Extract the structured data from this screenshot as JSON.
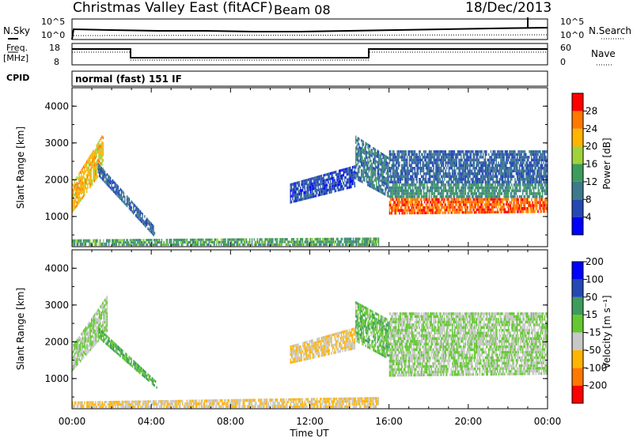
{
  "header": {
    "title": "Christmas Valley East (fitACF)",
    "beam": "Beam 08",
    "date": "18/Dec/2013"
  },
  "summary_panels": {
    "nsky_label": "N.Sky",
    "nsearch_label": "N.Search",
    "count_ticks": [
      "10^5",
      "10^0"
    ],
    "freq_label": "Freq.",
    "freq_unit": "[MHz]",
    "freq_ticks": [
      "18",
      "8"
    ],
    "nave_label": "Nave",
    "nave_ticks": [
      "60",
      "0"
    ],
    "cpid_label": "CPID",
    "cpid_text": "normal (fast) 151 IF"
  },
  "range_ticks": [
    "1000",
    "2000",
    "3000",
    "4000"
  ],
  "time_ticks": [
    "00:00",
    "04:00",
    "08:00",
    "12:00",
    "16:00",
    "20:00",
    "00:00"
  ],
  "xlabel": "Time UT",
  "colors": {
    "power": [
      "#0000ff",
      "#2448b4",
      "#3c7a8c",
      "#3c9c5c",
      "#a0d23c",
      "#ffb400",
      "#ff7800",
      "#ff0000"
    ],
    "velocity": [
      "#ff0000",
      "#ff7800",
      "#ffb400",
      "#c8c8c8",
      "#64c832",
      "#3c9c5c",
      "#2448b4",
      "#0000ff"
    ]
  },
  "chart_data": [
    {
      "type": "heatmap",
      "ylabel": "Slant Range [km]",
      "xlabel": "",
      "x_range_hours": [
        0,
        24
      ],
      "ylim": [
        180,
        4500
      ],
      "colorbar_label": "Power [dB]",
      "colorbar_ticks": [
        "4",
        "8",
        "12",
        "16",
        "20",
        "24",
        "28"
      ],
      "colorbar_range": [
        0,
        32
      ],
      "regions": [
        {
          "t": [
            0.0,
            1.6
          ],
          "r0": [
            1100,
            2300
          ],
          "r1": [
            1900,
            3300
          ],
          "value": 22
        },
        {
          "t": [
            1.3,
            4.2
          ],
          "r0": [
            2100,
            400
          ],
          "r1": [
            2450,
            700
          ],
          "value": 8
        },
        {
          "t": [
            0.0,
            15.5
          ],
          "r0": [
            200,
            200
          ],
          "r1": [
            380,
            430
          ],
          "value": 14
        },
        {
          "t": [
            11.0,
            14.3
          ],
          "r0": [
            1350,
            1800
          ],
          "r1": [
            1900,
            2400
          ],
          "value": 6
        },
        {
          "t": [
            14.3,
            16.0
          ],
          "r0": [
            2000,
            1500
          ],
          "r1": [
            3200,
            2600
          ],
          "value": 10
        },
        {
          "t": [
            16.0,
            24.0
          ],
          "r0": [
            1050,
            1100
          ],
          "r1": [
            1500,
            1500
          ],
          "value": 27
        },
        {
          "t": [
            16.0,
            24.0
          ],
          "r0": [
            1500,
            1500
          ],
          "r1": [
            1900,
            1900
          ],
          "value": 12
        },
        {
          "t": [
            16.0,
            24.0
          ],
          "r0": [
            1900,
            1900
          ],
          "r1": [
            2800,
            2800
          ],
          "value": 8
        }
      ]
    },
    {
      "type": "heatmap",
      "ylabel": "Slant Range [km]",
      "xlabel": "Time UT",
      "x_range_hours": [
        0,
        24
      ],
      "ylim": [
        180,
        4500
      ],
      "colorbar_label": "Velocity [m s⁻¹]",
      "colorbar_ticks": [
        "-200",
        "-100",
        "-50",
        "-15",
        "15",
        "50",
        "100",
        "200"
      ],
      "colorbar_range": [
        -250,
        250
      ],
      "regions": [
        {
          "t": [
            0.0,
            1.8
          ],
          "r0": [
            1200,
            2300
          ],
          "r1": [
            1900,
            3300
          ],
          "value": 0
        },
        {
          "t": [
            1.3,
            4.3
          ],
          "r0": [
            2100,
            700
          ],
          "r1": [
            2400,
            900
          ],
          "value": 70
        },
        {
          "t": [
            0.0,
            15.5
          ],
          "r0": [
            200,
            200
          ],
          "r1": [
            380,
            500
          ],
          "value": -60
        },
        {
          "t": [
            11.0,
            14.3
          ],
          "r0": [
            1400,
            1800
          ],
          "r1": [
            1900,
            2400
          ],
          "value": -60
        },
        {
          "t": [
            14.3,
            16.0
          ],
          "r0": [
            2000,
            1500
          ],
          "r1": [
            3100,
            2600
          ],
          "value": 40
        },
        {
          "t": [
            16.0,
            24.0
          ],
          "r0": [
            1050,
            1100
          ],
          "r1": [
            1900,
            1900
          ],
          "value": 0
        },
        {
          "t": [
            16.0,
            24.0
          ],
          "r0": [
            1900,
            1900
          ],
          "r1": [
            2800,
            2800
          ],
          "value": 0
        }
      ]
    }
  ]
}
